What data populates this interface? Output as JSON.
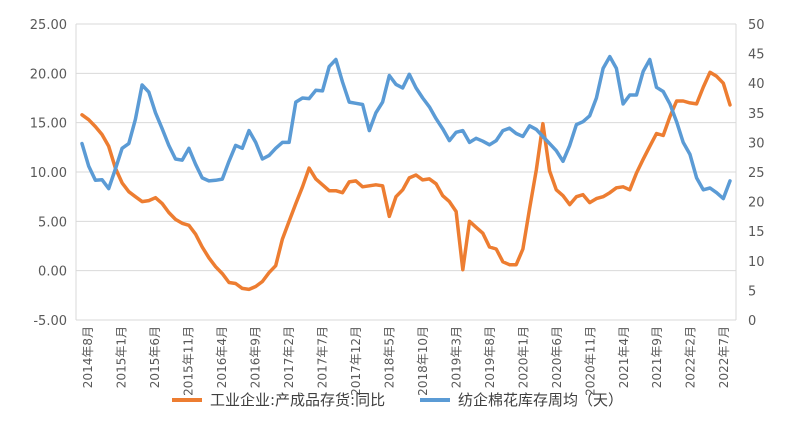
{
  "chart_data": {
    "type": "line",
    "x_labels": [
      "2014年8月",
      "2015年1月",
      "2015年6月",
      "2015年11月",
      "2016年4月",
      "2016年9月",
      "2017年2月",
      "2017年7月",
      "2017年12月",
      "2018年5月",
      "2018年10月",
      "2019年3月",
      "2019年8月",
      "2020年1月",
      "2020年6月",
      "2020年11月",
      "2021年4月",
      "2021年9月",
      "2022年2月",
      "2022年7月"
    ],
    "y_left": {
      "min": -5,
      "max": 25,
      "step": 5,
      "tick_labels": [
        "-5.00",
        "0.00",
        "5.00",
        "10.00",
        "15.00",
        "20.00",
        "25.00"
      ]
    },
    "y_right": {
      "min": 0,
      "max": 50,
      "step": 5,
      "tick_labels": [
        "0",
        "5",
        "10",
        "15",
        "20",
        "25",
        "30",
        "35",
        "40",
        "45",
        "50"
      ]
    },
    "grid": true,
    "legend_position": "bottom",
    "series": [
      {
        "name": "工业企业:产成品存货:同比",
        "axis": "left",
        "color": "#ed7d31",
        "values": [
          15.8,
          15.3,
          14.6,
          13.8,
          12.6,
          10.4,
          8.9,
          8.0,
          7.5,
          7.0,
          7.1,
          7.4,
          6.8,
          5.9,
          5.2,
          4.8,
          4.6,
          3.7,
          2.4,
          1.3,
          0.4,
          -0.3,
          -1.2,
          -1.3,
          -1.8,
          -1.9,
          -1.6,
          -1.1,
          -0.2,
          0.5,
          3.2,
          5.0,
          6.8,
          8.5,
          10.4,
          9.3,
          8.7,
          8.1,
          8.1,
          7.9,
          9.0,
          9.1,
          8.5,
          8.6,
          8.7,
          8.6,
          5.5,
          7.5,
          8.2,
          9.4,
          9.7,
          9.2,
          9.3,
          8.8,
          7.6,
          7.0,
          6.0,
          0.1,
          5.0,
          4.4,
          3.8,
          2.4,
          2.2,
          0.9,
          0.6,
          0.6,
          2.2,
          6.3,
          10.2,
          14.9,
          10.1,
          8.2,
          7.6,
          6.7,
          7.5,
          7.7,
          6.9,
          7.3,
          7.5,
          7.9,
          8.4,
          8.5,
          8.2,
          9.9,
          11.3,
          12.6,
          13.9,
          13.7,
          15.6,
          17.2,
          17.2,
          17.0,
          16.9,
          18.6,
          20.1,
          19.7,
          19.0,
          16.8
        ]
      },
      {
        "name": "纺企棉花库存周均（天）",
        "axis": "right",
        "color": "#5b9bd5",
        "values": [
          29.8,
          26.0,
          23.6,
          23.7,
          22.2,
          25.5,
          29.0,
          29.8,
          33.9,
          39.7,
          38.5,
          35.0,
          32.3,
          29.5,
          27.2,
          27.0,
          29.0,
          26.3,
          24.0,
          23.5,
          23.6,
          23.8,
          26.8,
          29.5,
          29.0,
          32.0,
          30.0,
          27.2,
          27.8,
          29.0,
          30.0,
          30.0,
          36.8,
          37.5,
          37.4,
          38.8,
          38.7,
          42.8,
          44.0,
          40.2,
          36.8,
          36.6,
          36.4,
          32.0,
          35.0,
          36.8,
          41.3,
          39.8,
          39.2,
          41.5,
          39.2,
          37.5,
          36.0,
          34.0,
          32.3,
          30.3,
          31.7,
          32.0,
          30.0,
          30.7,
          30.2,
          29.6,
          30.3,
          32.0,
          32.4,
          31.5,
          31.0,
          32.8,
          32.2,
          31.0,
          29.8,
          28.6,
          26.8,
          29.5,
          33.0,
          33.5,
          34.5,
          37.5,
          42.5,
          44.5,
          42.5,
          36.5,
          38.0,
          38.0,
          42.0,
          44.0,
          39.3,
          38.6,
          36.5,
          33.5,
          30.0,
          28.0,
          24.0,
          22.0,
          22.3,
          21.5,
          20.5,
          23.5
        ]
      }
    ]
  }
}
